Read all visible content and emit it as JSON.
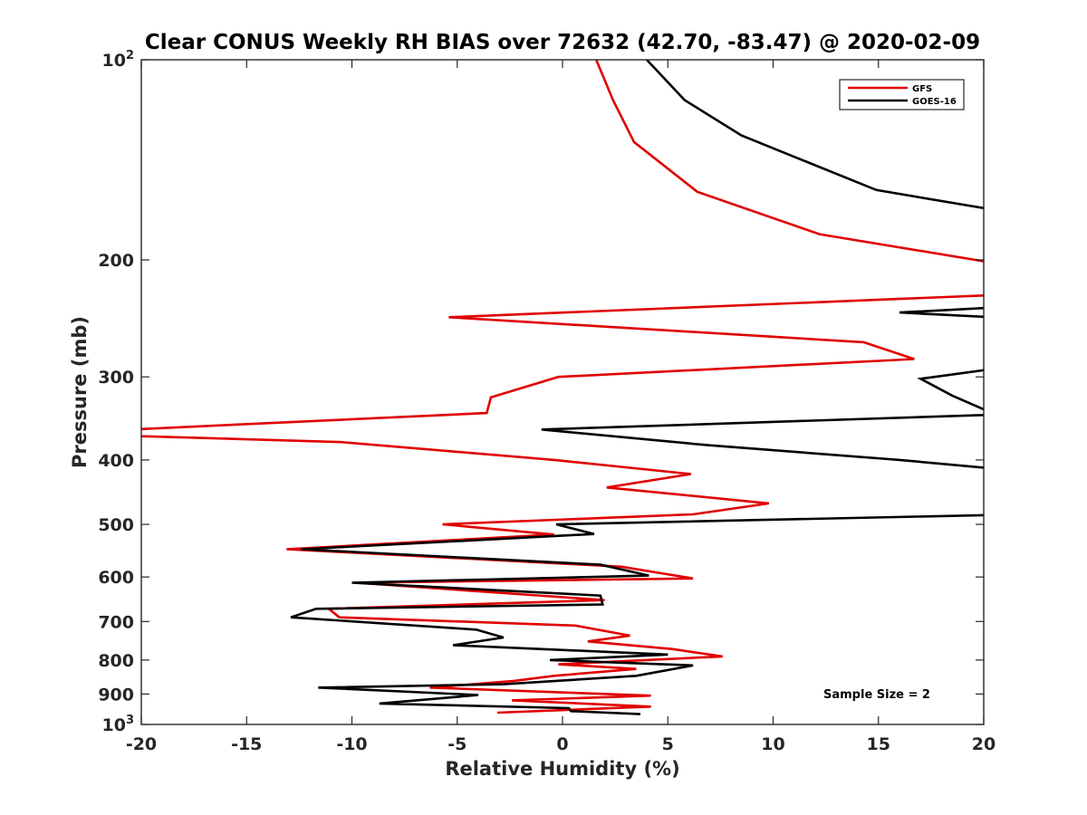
{
  "chart_data": {
    "type": "line",
    "title": "Clear CONUS Weekly RH BIAS over 72632 (42.70, -83.47) @ 2020-02-09",
    "xlabel": "Relative Humidity (%)",
    "ylabel": "Pressure (mb)",
    "xlim": [
      -20,
      20
    ],
    "ylim": [
      100,
      1000
    ],
    "yscale": "log",
    "y_reversed": true,
    "x_ticks": [
      "-20",
      "-15",
      "-10",
      "-5",
      "0",
      "5",
      "10",
      "15",
      "20"
    ],
    "y_ticks": [
      {
        "value": 100,
        "base": "10",
        "exp": "2"
      },
      {
        "value": 200,
        "label": "200"
      },
      {
        "value": 300,
        "label": "300"
      },
      {
        "value": 400,
        "label": "400"
      },
      {
        "value": 500,
        "label": "500"
      },
      {
        "value": 600,
        "label": "600"
      },
      {
        "value": 700,
        "label": "700"
      },
      {
        "value": 800,
        "label": "800"
      },
      {
        "value": 900,
        "label": "900"
      },
      {
        "value": 1000,
        "base": "10",
        "exp": "3"
      }
    ],
    "legend_position": "top-right",
    "annotation": "Sample Size = 2",
    "series": [
      {
        "name": "GFS",
        "color": "#e00000",
        "points": [
          [
            1.6,
            100
          ],
          [
            2.4,
            115
          ],
          [
            3.4,
            133
          ],
          [
            6.4,
            158
          ],
          [
            12.2,
            183
          ],
          [
            20.4,
            202
          ],
          [
            20.4,
            226
          ],
          [
            -5.4,
            244
          ],
          [
            14.3,
            266
          ],
          [
            16.7,
            282
          ],
          [
            -0.2,
            300
          ],
          [
            -3.4,
            322
          ],
          [
            -3.6,
            340
          ],
          [
            -20.5,
            360
          ],
          [
            -20.5,
            368
          ],
          [
            -10.5,
            376
          ],
          [
            -0.4,
            400
          ],
          [
            6.1,
            420
          ],
          [
            2.1,
            440
          ],
          [
            9.8,
            465
          ],
          [
            6.2,
            483
          ],
          [
            -5.7,
            500
          ],
          [
            -0.4,
            518
          ],
          [
            -13.1,
            545
          ],
          [
            2.8,
            579
          ],
          [
            6.2,
            603
          ],
          [
            -9.8,
            612
          ],
          [
            2.0,
            650
          ],
          [
            -11.1,
            670
          ],
          [
            -10.6,
            690
          ],
          [
            0.6,
            710
          ],
          [
            3.2,
            735
          ],
          [
            1.2,
            750
          ],
          [
            5.2,
            770
          ],
          [
            7.6,
            790
          ],
          [
            -0.2,
            812
          ],
          [
            3.5,
            825
          ],
          [
            -0.4,
            845
          ],
          [
            -2.3,
            860
          ],
          [
            -6.3,
            880
          ],
          [
            4.2,
            905
          ],
          [
            -2.4,
            920
          ],
          [
            4.2,
            940
          ],
          [
            -3.1,
            960
          ]
        ]
      },
      {
        "name": "GOES-16",
        "color": "#000000",
        "points": [
          [
            4.0,
            100
          ],
          [
            5.8,
            115
          ],
          [
            8.5,
            130
          ],
          [
            14.9,
            157
          ],
          [
            20.4,
            168
          ],
          [
            20.4,
            236
          ],
          [
            16.0,
            240
          ],
          [
            20.4,
            244
          ],
          [
            20.4,
            292
          ],
          [
            17.0,
            302
          ],
          [
            18.5,
            320
          ],
          [
            20.4,
            340
          ],
          [
            20.4,
            342
          ],
          [
            -1.0,
            360
          ],
          [
            6.9,
            380
          ],
          [
            16.0,
            400
          ],
          [
            20.4,
            412
          ],
          [
            20.4,
            484
          ],
          [
            -0.3,
            500
          ],
          [
            1.5,
            517
          ],
          [
            -12.4,
            545
          ],
          [
            1.8,
            575
          ],
          [
            4.1,
            597
          ],
          [
            -10.0,
            612
          ],
          [
            1.8,
            640
          ],
          [
            1.9,
            660
          ],
          [
            -11.7,
            670
          ],
          [
            -12.9,
            690
          ],
          [
            -4.1,
            720
          ],
          [
            -2.8,
            740
          ],
          [
            -5.2,
            760
          ],
          [
            5.0,
            785
          ],
          [
            -0.6,
            800
          ],
          [
            6.2,
            815
          ],
          [
            3.5,
            845
          ],
          [
            -2.8,
            870
          ],
          [
            -11.6,
            880
          ],
          [
            -4.0,
            903
          ],
          [
            -8.7,
            930
          ],
          [
            0.3,
            945
          ],
          [
            0.4,
            955
          ],
          [
            3.7,
            965
          ]
        ]
      }
    ]
  }
}
